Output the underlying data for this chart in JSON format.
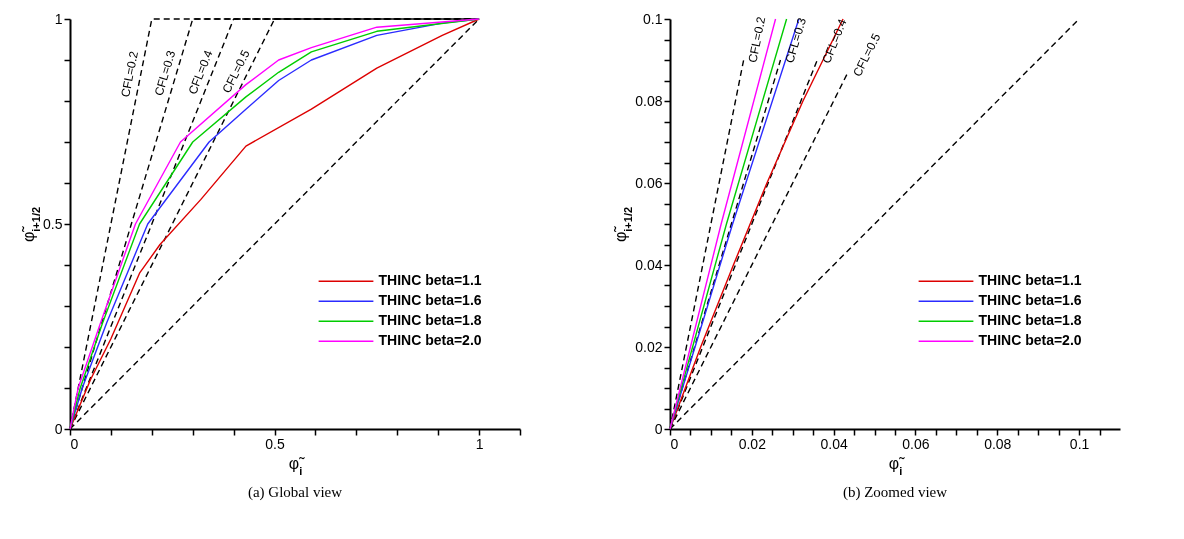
{
  "chart_data": [
    {
      "type": "line",
      "title": "(a) Global view",
      "xlabel": "φ̃$_{i}$",
      "ylabel": "φ̃$_{i+1/2}$",
      "xlim": [
        0,
        1.1
      ],
      "ylim": [
        0,
        1
      ],
      "xticks": [
        0,
        {
          "value": 0.1,
          "label": null
        },
        {
          "value": 0.2,
          "label": null
        },
        {
          "value": 0.3,
          "label": null
        },
        {
          "value": 0.4,
          "label": null
        },
        0.5,
        {
          "value": 0.6,
          "label": null
        },
        {
          "value": 0.7,
          "label": null
        },
        {
          "value": 0.8,
          "label": null
        },
        {
          "value": 0.9,
          "label": null
        },
        1,
        {
          "value": 1.1,
          "label": null
        }
      ],
      "yticks": [
        0,
        {
          "value": 0.1,
          "label": null
        },
        {
          "value": 0.2,
          "label": null
        },
        {
          "value": 0.3,
          "label": null
        },
        {
          "value": 0.4,
          "label": null
        },
        0.5,
        {
          "value": 0.6,
          "label": null
        },
        {
          "value": 0.7,
          "label": null
        },
        {
          "value": 0.8,
          "label": null
        },
        {
          "value": 0.9,
          "label": null
        },
        1
      ],
      "legend": "bottom right",
      "series": [
        {
          "color": "#000000",
          "line_style": "dashed",
          "x": [
            0,
            1
          ],
          "values": [
            0,
            1
          ]
        },
        {
          "color": "#000000",
          "line_style": "dashed",
          "x": [
            0,
            0.2,
            1
          ],
          "values": [
            0,
            1,
            1
          ]
        },
        {
          "color": "#000000",
          "line_style": "dashed",
          "x": [
            0,
            0.3,
            1
          ],
          "values": [
            0,
            1,
            1
          ]
        },
        {
          "color": "#000000",
          "line_style": "dashed",
          "x": [
            0,
            0.4,
            1
          ],
          "values": [
            0,
            1,
            1
          ]
        },
        {
          "color": "#000000",
          "line_style": "dashed",
          "x": [
            0,
            0.5,
            1
          ],
          "values": [
            0,
            1,
            1
          ]
        },
        {
          "name": "THINC beta=1.1",
          "color": "#dd0000",
          "line_style": "solid",
          "x": [
            0,
            0.05,
            0.1,
            0.17,
            0.22,
            0.32,
            0.43,
            0.59,
            0.75,
            0.91,
            1
          ],
          "values": [
            0,
            0.12,
            0.22,
            0.38,
            0.45,
            0.56,
            0.69,
            0.78,
            0.88,
            0.96,
            1
          ]
        },
        {
          "name": "THINC beta=1.6",
          "color": "#2b2bff",
          "line_style": "solid",
          "x": [
            0,
            0.03,
            0.09,
            0.19,
            0.34,
            0.43,
            0.51,
            0.59,
            0.75,
            0.91,
            1
          ],
          "values": [
            0,
            0.1,
            0.26,
            0.5,
            0.7,
            0.78,
            0.85,
            0.9,
            0.96,
            0.99,
            1
          ]
        },
        {
          "name": "THINC beta=1.8",
          "color": "#00cc00",
          "line_style": "solid",
          "x": [
            0,
            0.025,
            0.08,
            0.17,
            0.3,
            0.43,
            0.51,
            0.59,
            0.75,
            1
          ],
          "values": [
            0,
            0.1,
            0.26,
            0.5,
            0.7,
            0.81,
            0.87,
            0.92,
            0.97,
            1
          ]
        },
        {
          "name": "THINC beta=2.0",
          "color": "#ff00ff",
          "line_style": "solid",
          "x": [
            0,
            0.02,
            0.075,
            0.16,
            0.27,
            0.43,
            0.51,
            0.59,
            0.75,
            1
          ],
          "values": [
            0,
            0.1,
            0.26,
            0.5,
            0.7,
            0.84,
            0.9,
            0.93,
            0.98,
            1
          ]
        }
      ],
      "annotations": [
        "CFL=0.2",
        "CFL=0.3",
        "CFL=0.4",
        "CFL=0.5"
      ]
    },
    {
      "type": "line",
      "title": "(b) Zoomed view",
      "xlabel": "φ̃$_{i}$",
      "ylabel": "φ̃$_{i+1/2}$",
      "xlim": [
        0,
        0.11
      ],
      "ylim": [
        0,
        0.1
      ],
      "xticks": [
        0,
        {
          "value": 0.005,
          "label": null
        },
        {
          "value": 0.01,
          "label": null
        },
        {
          "value": 0.015,
          "label": null
        },
        0.02,
        {
          "value": 0.025,
          "label": null
        },
        {
          "value": 0.03,
          "label": null
        },
        {
          "value": 0.035,
          "label": null
        },
        0.04,
        {
          "value": 0.045,
          "label": null
        },
        {
          "value": 0.05,
          "label": null
        },
        {
          "value": 0.055,
          "label": null
        },
        0.06,
        {
          "value": 0.065,
          "label": null
        },
        {
          "value": 0.07,
          "label": null
        },
        {
          "value": 0.075,
          "label": null
        },
        0.08,
        {
          "value": 0.085,
          "label": null
        },
        {
          "value": 0.09,
          "label": null
        },
        {
          "value": 0.095,
          "label": null
        },
        0.1,
        {
          "value": 0.105,
          "label": null
        }
      ],
      "yticks": [
        0,
        {
          "value": 0.005,
          "label": null
        },
        {
          "value": 0.01,
          "label": null
        },
        {
          "value": 0.015,
          "label": null
        },
        0.02,
        {
          "value": 0.025,
          "label": null
        },
        {
          "value": 0.03,
          "label": null
        },
        {
          "value": 0.035,
          "label": null
        },
        0.04,
        {
          "value": 0.045,
          "label": null
        },
        {
          "value": 0.05,
          "label": null
        },
        {
          "value": 0.055,
          "label": null
        },
        0.06,
        {
          "value": 0.065,
          "label": null
        },
        {
          "value": 0.07,
          "label": null
        },
        {
          "value": 0.075,
          "label": null
        },
        0.08,
        {
          "value": 0.085,
          "label": null
        },
        {
          "value": 0.09,
          "label": null
        },
        {
          "value": 0.095,
          "label": null
        },
        0.1
      ],
      "legend": "bottom right",
      "series": [
        {
          "color": "#000000",
          "line_style": "dashed",
          "x": [
            0,
            0.1
          ],
          "values": [
            0,
            0.1
          ]
        },
        {
          "color": "#000000",
          "line_style": "dashed",
          "x": [
            0,
            0.018
          ],
          "values": [
            0,
            0.09
          ]
        },
        {
          "color": "#000000",
          "line_style": "dashed",
          "x": [
            0,
            0.027
          ],
          "values": [
            0,
            0.09
          ]
        },
        {
          "color": "#000000",
          "line_style": "dashed",
          "x": [
            0,
            0.036
          ],
          "values": [
            0,
            0.09
          ]
        },
        {
          "color": "#000000",
          "line_style": "dashed",
          "x": [
            0,
            0.0435
          ],
          "values": [
            0,
            0.087
          ]
        },
        {
          "name": "THINC beta=1.1",
          "color": "#dd0000",
          "line_style": "solid",
          "x": [
            0,
            0.0075,
            0.0155,
            0.0237,
            0.0325,
            0.0423
          ],
          "values": [
            0,
            0.02,
            0.04,
            0.06,
            0.08,
            0.1
          ]
        },
        {
          "name": "THINC beta=1.6",
          "color": "#2b2bff",
          "line_style": "solid",
          "x": [
            0,
            0.0153,
            0.0315
          ],
          "values": [
            0,
            0.05,
            0.1
          ]
        },
        {
          "name": "THINC beta=1.8",
          "color": "#00cc00",
          "line_style": "solid",
          "x": [
            0,
            0.0138,
            0.0285
          ],
          "values": [
            0,
            0.05,
            0.1
          ]
        },
        {
          "name": "THINC beta=2.0",
          "color": "#ff00ff",
          "line_style": "solid",
          "x": [
            0,
            0.0125,
            0.0258
          ],
          "values": [
            0,
            0.05,
            0.1
          ]
        }
      ],
      "annotations": [
        "CFL=0.2",
        "CFL=0.3",
        "CFL=0.4",
        "CFL=0.5"
      ]
    }
  ]
}
